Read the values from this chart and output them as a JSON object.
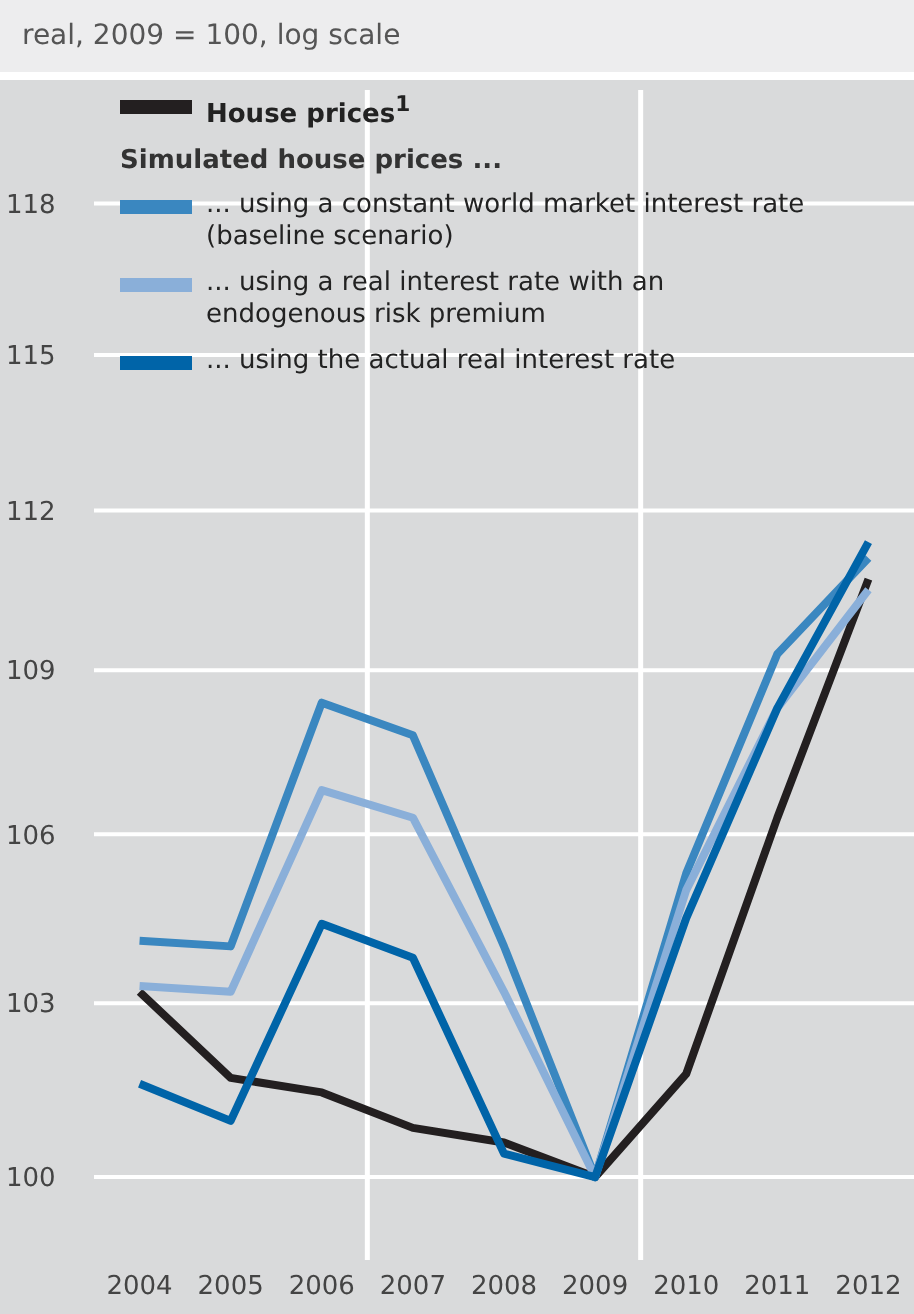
{
  "chart_data": {
    "type": "line",
    "title": "real, 2009 = 100, log scale",
    "legend_title": "Simulated house prices ...",
    "x": [
      2004,
      2005,
      2006,
      2007,
      2008,
      2009,
      2010,
      2011,
      2012
    ],
    "xlim": [
      2003.5,
      2012.5
    ],
    "xticks": [
      2004,
      2005,
      2006,
      2007,
      2008,
      2009,
      2010,
      2011,
      2012
    ],
    "ylim": [
      98.6,
      120.3
    ],
    "yticks": [
      100,
      103,
      106,
      109,
      112,
      115,
      118
    ],
    "log": "y",
    "grid": "y",
    "legend": "top left",
    "marker": "none",
    "line_style": "solid",
    "ref_lines": [
      {
        "axis": "x",
        "value": 2006.5,
        "color": "#ffffff"
      },
      {
        "axis": "x",
        "value": 2009.5,
        "color": "#ffffff"
      }
    ],
    "series": [
      {
        "name": "House prices$^{1}$",
        "color": "#231f20",
        "values": [
          103.2,
          101.7,
          101.45,
          100.84,
          100.59,
          100,
          101.77,
          106.3,
          110.7
        ]
      },
      {
        "name": "... using a constant world market interest rate (baseline scenario)",
        "color": "#3a87c0",
        "values": [
          104.1,
          104.0,
          108.4,
          107.8,
          104.0,
          100,
          105.3,
          109.3,
          111.1
        ]
      },
      {
        "name": "... using a real interest rate with an endogenous risk premium",
        "color": "#8aafd9",
        "values": [
          103.3,
          103.2,
          106.8,
          106.3,
          103.2,
          100,
          105.0,
          108.3,
          110.5
        ]
      },
      {
        "name": "... using the actual real interest rate",
        "color": "#0064a8",
        "values": [
          101.6,
          100.96,
          104.4,
          103.8,
          100.4,
          100,
          104.5,
          108.3,
          111.4
        ]
      }
    ]
  }
}
